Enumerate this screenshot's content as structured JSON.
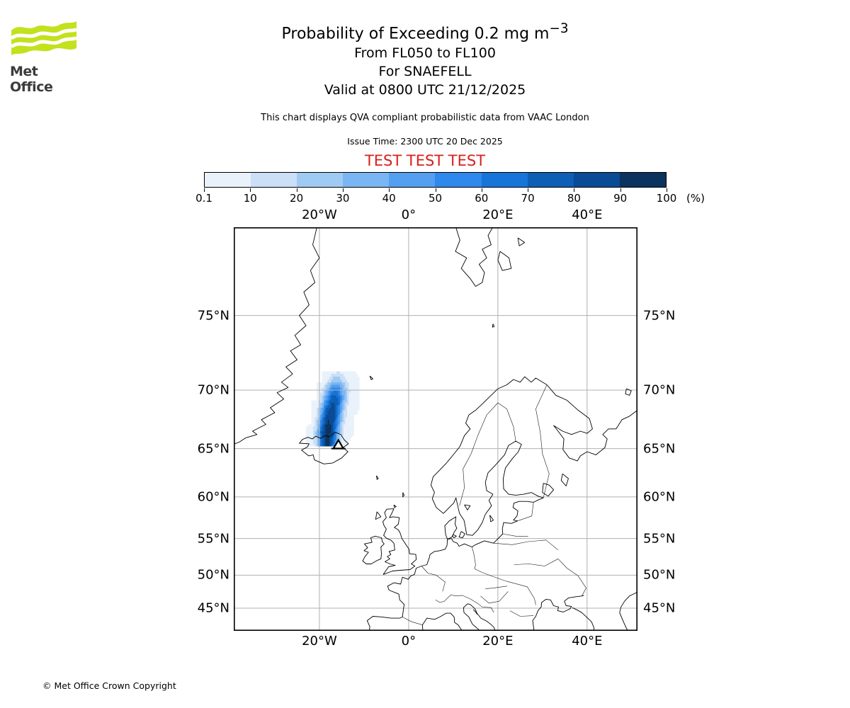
{
  "header": {
    "logo_text": "Met Office",
    "logo_green": "#c3e11c",
    "title": "Probability of Exceeding 0.2 mg m",
    "title_sup": "−3",
    "subtitle1": "From FL050 to FL100",
    "subtitle2": "For SNAEFELL",
    "subtitle3": "Valid at 0800 UTC 21/12/2025",
    "qva_note": "This chart displays QVA compliant probabilistic data from VAAC London",
    "issue_time": "Issue Time: 2300 UTC 20 Dec 2025",
    "test_banner": "TEST TEST TEST",
    "test_color": "#d8201c"
  },
  "footer": {
    "copyright": "© Met Office Crown Copyright"
  },
  "chart_data": {
    "type": "heatmap",
    "title": "Probability of Exceeding 0.2 mg m−3",
    "subtitle": [
      "From FL050 to FL100",
      "For SNAEFELL",
      "Valid at 0800 UTC 21/12/2025"
    ],
    "colorbar": {
      "levels": [
        0.1,
        10,
        20,
        30,
        40,
        50,
        60,
        70,
        80,
        90,
        100
      ],
      "tick_labels": [
        "0.1",
        "10",
        "20",
        "30",
        "40",
        "50",
        "60",
        "70",
        "80",
        "90",
        "100"
      ],
      "unit": "(%)",
      "colors": [
        "#e9f2fb",
        "#cbdff7",
        "#9fcbf2",
        "#7ab6f3",
        "#549ff0",
        "#2f88ec",
        "#1774d8",
        "#0d5eb4",
        "#094b94",
        "#0a335e"
      ]
    },
    "map": {
      "projection": "mercator",
      "extent": {
        "lon_min": -39.2,
        "lon_max": 51.3,
        "lat_min": 41.3,
        "lat_max": 79.35
      },
      "lon_ticks": [
        {
          "lon": -20,
          "label": "20°W"
        },
        {
          "lon": 0,
          "label": "0°"
        },
        {
          "lon": 20,
          "label": "20°E"
        },
        {
          "lon": 40,
          "label": "40°E"
        }
      ],
      "lat_ticks": [
        {
          "lat": 75,
          "label": "75°N"
        },
        {
          "lat": 70,
          "label": "70°N"
        },
        {
          "lat": 65,
          "label": "65°N"
        },
        {
          "lat": 60,
          "label": "60°N"
        },
        {
          "lat": 55,
          "label": "55°N"
        },
        {
          "lat": 50,
          "label": "50°N"
        },
        {
          "lat": 45,
          "label": "45°N"
        }
      ],
      "gridline_color": "#b0b0b0"
    },
    "volcano": {
      "name": "SNAEFELL",
      "lon": -15.75,
      "lat": 65.27
    },
    "plume": {
      "description": "Probability (%) of ash exceeding 0.2 mg m-3, FL050-FL100",
      "lon0": -23.0,
      "dlon": 1.2,
      "lat0": 71.4,
      "dlat": -0.7,
      "values": [
        [
          0,
          0,
          0,
          0,
          0,
          5,
          8,
          5,
          2,
          0,
          0
        ],
        [
          0,
          0,
          0,
          0,
          10,
          25,
          30,
          18,
          6,
          1,
          0
        ],
        [
          0,
          0,
          0,
          8,
          35,
          60,
          60,
          35,
          12,
          3,
          0
        ],
        [
          0,
          0,
          0,
          18,
          55,
          80,
          70,
          35,
          10,
          2,
          0
        ],
        [
          0,
          0,
          5,
          35,
          75,
          88,
          65,
          25,
          6,
          1,
          0
        ],
        [
          0,
          0,
          10,
          50,
          88,
          90,
          55,
          18,
          4,
          0,
          0
        ],
        [
          0,
          0,
          18,
          65,
          95,
          85,
          45,
          12,
          2,
          0,
          0
        ],
        [
          0,
          4,
          25,
          80,
          100,
          80,
          35,
          8,
          1,
          0,
          0
        ],
        [
          0,
          3,
          20,
          75,
          100,
          75,
          25,
          4,
          0,
          0,
          0
        ],
        [
          0,
          2,
          15,
          70,
          95,
          60,
          10,
          1,
          0,
          0,
          0
        ]
      ]
    }
  }
}
